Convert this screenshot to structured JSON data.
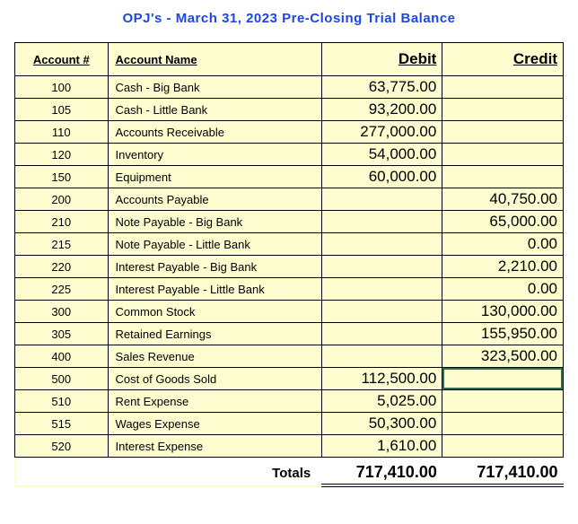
{
  "title": "OPJ's  -  March 31, 2023  Pre-Closing Trial Balance",
  "table": {
    "headers": {
      "acct": "Account #",
      "name": "Account Name",
      "debit": "Debit",
      "credit": "Credit"
    },
    "rows": [
      {
        "acct": "100",
        "name": "Cash - Big Bank",
        "debit": "63,775.00",
        "credit": ""
      },
      {
        "acct": "105",
        "name": "Cash - Little Bank",
        "debit": "93,200.00",
        "credit": ""
      },
      {
        "acct": "110",
        "name": "Accounts Receivable",
        "debit": "277,000.00",
        "credit": ""
      },
      {
        "acct": "120",
        "name": "Inventory",
        "debit": "54,000.00",
        "credit": ""
      },
      {
        "acct": "150",
        "name": "Equipment",
        "debit": "60,000.00",
        "credit": ""
      },
      {
        "acct": "200",
        "name": "Accounts Payable",
        "debit": "",
        "credit": "40,750.00"
      },
      {
        "acct": "210",
        "name": "Note Payable - Big Bank",
        "debit": "",
        "credit": "65,000.00"
      },
      {
        "acct": "215",
        "name": "Note Payable - Little Bank",
        "debit": "",
        "credit": "0.00"
      },
      {
        "acct": "220",
        "name": "Interest Payable - Big Bank",
        "debit": "",
        "credit": "2,210.00"
      },
      {
        "acct": "225",
        "name": "Interest Payable - Little Bank",
        "debit": "",
        "credit": "0.00"
      },
      {
        "acct": "300",
        "name": "Common Stock",
        "debit": "",
        "credit": "130,000.00"
      },
      {
        "acct": "305",
        "name": "Retained Earnings",
        "debit": "",
        "credit": "155,950.00"
      },
      {
        "acct": "400",
        "name": "Sales Revenue",
        "debit": "",
        "credit": "323,500.00"
      },
      {
        "acct": "500",
        "name": "Cost of Goods Sold",
        "debit": "112,500.00",
        "credit": "",
        "highlight_credit": true
      },
      {
        "acct": "510",
        "name": "Rent Expense",
        "debit": "5,025.00",
        "credit": ""
      },
      {
        "acct": "515",
        "name": "Wages Expense",
        "debit": "50,300.00",
        "credit": ""
      },
      {
        "acct": "520",
        "name": "Interest Expense",
        "debit": "1,610.00",
        "credit": ""
      }
    ],
    "totals": {
      "label": "Totals",
      "debit": "717,410.00",
      "credit": "717,410.00"
    }
  },
  "style": {
    "title_color": "#1947e6",
    "background": "#fdfdd0",
    "border_color": "#000000",
    "highlight_border": "#2a6e4a",
    "title_fontsize": 15,
    "header_fontsize": 13,
    "cell_text_fontsize": 13,
    "cell_num_fontsize": 17,
    "totals_fontsize": 18
  }
}
